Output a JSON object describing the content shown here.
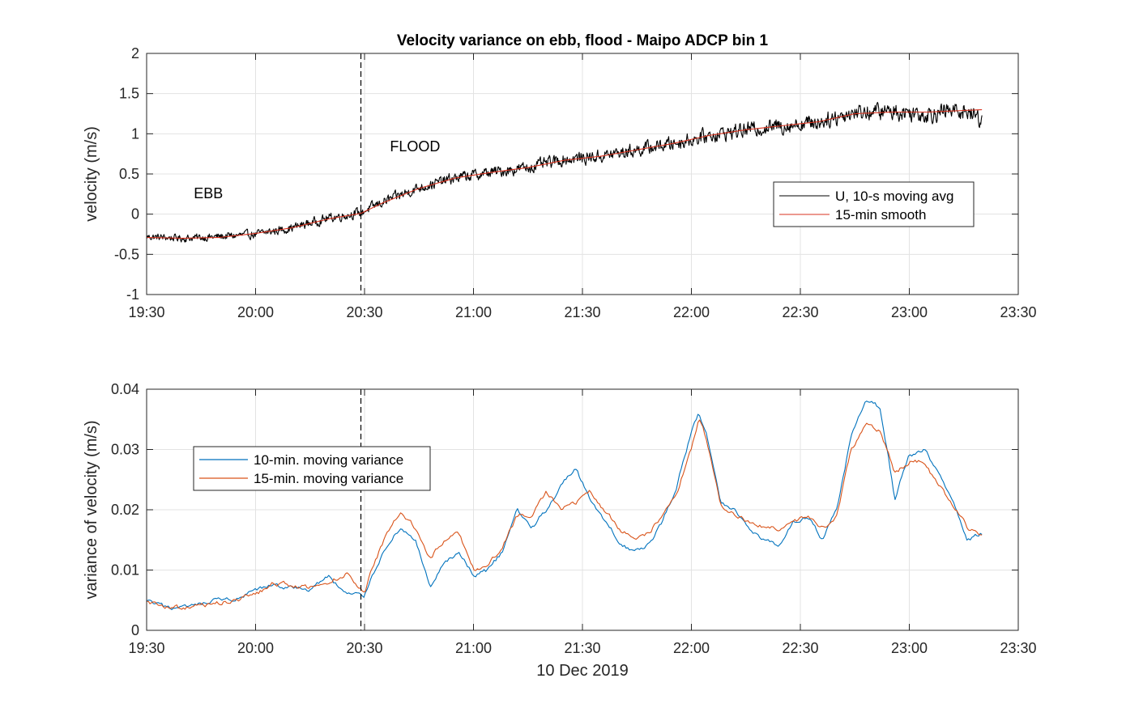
{
  "chart_data": [
    {
      "type": "line",
      "title": "Velocity variance on ebb, flood - Maipo ADCP bin 1",
      "xlabel": "",
      "ylabel": "velocity (m/s)",
      "x_tick_labels": [
        "19:30",
        "20:00",
        "20:30",
        "21:00",
        "21:30",
        "22:00",
        "22:30",
        "23:00",
        "23:30"
      ],
      "y_ticks": [
        -1,
        -0.5,
        0,
        0.5,
        1,
        1.5,
        2
      ],
      "y_tick_labels": [
        "-1",
        "-0.5",
        "0",
        "0.5",
        "1",
        "1.5",
        "2"
      ],
      "xlim": [
        "19:30",
        "23:30"
      ],
      "ylim": [
        -1,
        2
      ],
      "grid": true,
      "legend_location": "lower-right",
      "vline": "20:29",
      "annotations": [
        {
          "text": "EBB",
          "x": "19:43",
          "y": 0.2
        },
        {
          "text": "FLOOD",
          "x": "20:37",
          "y": 0.78
        }
      ],
      "series": [
        {
          "name": "U, 10-s moving avg",
          "color": "#000000",
          "x": [
            "19:30",
            "19:40",
            "19:50",
            "20:00",
            "20:10",
            "20:20",
            "20:29",
            "20:35",
            "20:45",
            "20:55",
            "21:05",
            "21:15",
            "21:25",
            "21:35",
            "21:45",
            "21:55",
            "22:05",
            "22:15",
            "22:25",
            "22:35",
            "22:45",
            "22:55",
            "23:05",
            "23:15",
            "23:20"
          ],
          "values": [
            -0.28,
            -0.3,
            -0.28,
            -0.25,
            -0.17,
            -0.05,
            0.02,
            0.15,
            0.33,
            0.45,
            0.52,
            0.58,
            0.68,
            0.72,
            0.8,
            0.88,
            0.98,
            1.05,
            1.1,
            1.15,
            1.27,
            1.28,
            1.25,
            1.3,
            1.18
          ],
          "noise_amplitude": 0.12
        },
        {
          "name": "15-min smooth",
          "color": "#d9321f",
          "x": [
            "19:30",
            "19:40",
            "19:50",
            "20:00",
            "20:10",
            "20:20",
            "20:29",
            "20:35",
            "20:45",
            "20:55",
            "21:05",
            "21:15",
            "21:25",
            "21:35",
            "21:45",
            "21:55",
            "22:05",
            "22:15",
            "22:25",
            "22:35",
            "22:45",
            "22:55",
            "23:05",
            "23:15",
            "23:20"
          ],
          "values": [
            -0.29,
            -0.3,
            -0.29,
            -0.24,
            -0.17,
            -0.06,
            0.01,
            0.14,
            0.32,
            0.45,
            0.52,
            0.58,
            0.67,
            0.72,
            0.8,
            0.88,
            0.98,
            1.05,
            1.1,
            1.15,
            1.25,
            1.27,
            1.27,
            1.29,
            1.3
          ]
        }
      ]
    },
    {
      "type": "line",
      "title": "",
      "xlabel": "10 Dec 2019",
      "ylabel": "variance of velocity (m/s)",
      "x_tick_labels": [
        "19:30",
        "20:00",
        "20:30",
        "21:00",
        "21:30",
        "22:00",
        "22:30",
        "23:00",
        "23:30"
      ],
      "y_ticks": [
        0,
        0.01,
        0.02,
        0.03,
        0.04
      ],
      "y_tick_labels": [
        "0",
        "0.01",
        "0.02",
        "0.03",
        "0.04"
      ],
      "xlim": [
        "19:30",
        "23:30"
      ],
      "ylim": [
        0,
        0.04
      ],
      "grid": true,
      "legend_location": "upper-left",
      "vline": "20:29",
      "series": [
        {
          "name": "10-min. moving variance",
          "color": "#0072bd",
          "x": [
            "19:30",
            "19:35",
            "19:40",
            "19:45",
            "19:50",
            "19:55",
            "20:00",
            "20:05",
            "20:10",
            "20:15",
            "20:20",
            "20:25",
            "20:30",
            "20:32",
            "20:36",
            "20:40",
            "20:44",
            "20:48",
            "20:52",
            "20:56",
            "21:00",
            "21:04",
            "21:08",
            "21:12",
            "21:16",
            "21:20",
            "21:24",
            "21:28",
            "21:32",
            "21:36",
            "21:40",
            "21:44",
            "21:48",
            "21:52",
            "21:56",
            "22:00",
            "22:02",
            "22:04",
            "22:08",
            "22:12",
            "22:16",
            "22:20",
            "22:24",
            "22:28",
            "22:32",
            "22:36",
            "22:40",
            "22:44",
            "22:48",
            "22:52",
            "22:56",
            "23:00",
            "23:04",
            "23:08",
            "23:12",
            "23:16",
            "23:20"
          ],
          "values": [
            0.0048,
            0.0038,
            0.0036,
            0.0042,
            0.005,
            0.0052,
            0.0065,
            0.0075,
            0.007,
            0.0068,
            0.009,
            0.006,
            0.0058,
            0.009,
            0.014,
            0.017,
            0.015,
            0.007,
            0.011,
            0.013,
            0.009,
            0.01,
            0.013,
            0.02,
            0.017,
            0.02,
            0.024,
            0.027,
            0.022,
            0.018,
            0.015,
            0.013,
            0.014,
            0.018,
            0.024,
            0.033,
            0.036,
            0.033,
            0.021,
            0.02,
            0.017,
            0.015,
            0.014,
            0.018,
            0.019,
            0.015,
            0.02,
            0.032,
            0.038,
            0.037,
            0.022,
            0.029,
            0.03,
            0.026,
            0.022,
            0.015,
            0.016
          ]
        },
        {
          "name": "15-min. moving variance",
          "color": "#d95319",
          "x": [
            "19:30",
            "19:35",
            "19:40",
            "19:45",
            "19:50",
            "19:55",
            "20:00",
            "20:05",
            "20:10",
            "20:15",
            "20:20",
            "20:25",
            "20:30",
            "20:32",
            "20:36",
            "20:40",
            "20:44",
            "20:48",
            "20:52",
            "20:56",
            "21:00",
            "21:04",
            "21:08",
            "21:12",
            "21:16",
            "21:20",
            "21:24",
            "21:28",
            "21:32",
            "21:36",
            "21:40",
            "21:44",
            "21:48",
            "21:52",
            "21:56",
            "22:00",
            "22:02",
            "22:04",
            "22:08",
            "22:12",
            "22:16",
            "22:20",
            "22:24",
            "22:28",
            "22:32",
            "22:36",
            "22:40",
            "22:44",
            "22:48",
            "22:52",
            "22:56",
            "23:00",
            "23:04",
            "23:08",
            "23:12",
            "23:16",
            "23:20"
          ],
          "values": [
            0.0047,
            0.004,
            0.0037,
            0.004,
            0.0045,
            0.005,
            0.006,
            0.0078,
            0.0075,
            0.007,
            0.008,
            0.0095,
            0.0062,
            0.01,
            0.016,
            0.02,
            0.017,
            0.012,
            0.015,
            0.016,
            0.01,
            0.011,
            0.014,
            0.019,
            0.019,
            0.023,
            0.02,
            0.021,
            0.023,
            0.02,
            0.017,
            0.015,
            0.016,
            0.019,
            0.023,
            0.03,
            0.035,
            0.032,
            0.021,
            0.019,
            0.018,
            0.017,
            0.017,
            0.018,
            0.019,
            0.017,
            0.019,
            0.03,
            0.034,
            0.033,
            0.026,
            0.028,
            0.028,
            0.024,
            0.021,
            0.017,
            0.016
          ]
        }
      ]
    }
  ]
}
